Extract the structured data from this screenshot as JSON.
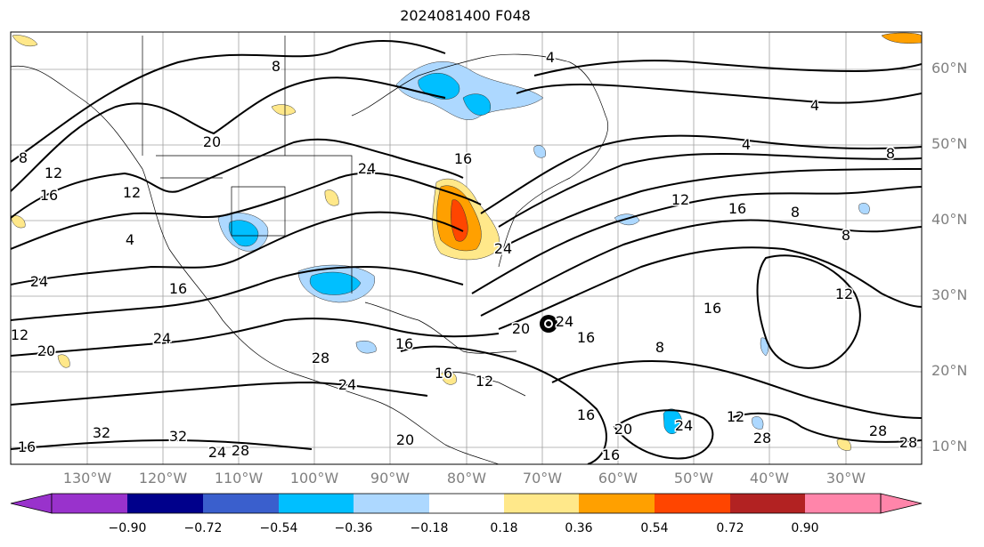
{
  "title": "2024081400 F048",
  "lat_labels": [
    "60°N",
    "50°N",
    "40°N",
    "30°N",
    "20°N",
    "10°N"
  ],
  "lon_labels": [
    "130°W",
    "120°W",
    "110°W",
    "100°W",
    "90°W",
    "80°W",
    "70°W",
    "60°W",
    "50°W",
    "40°W",
    "30°W"
  ],
  "contour_labels": [
    "8",
    "4",
    "4",
    "4",
    "8",
    "20",
    "8",
    "12",
    "16",
    "12",
    "24",
    "12",
    "16",
    "8",
    "8",
    "4",
    "24",
    "16",
    "16",
    "16",
    "12",
    "12",
    "20",
    "16",
    "24",
    "20",
    "16",
    "8",
    "16",
    "12",
    "12",
    "16",
    "24",
    "32",
    "32",
    "28",
    "24",
    "28",
    "20",
    "16",
    "28",
    "24",
    "24",
    "20",
    "16",
    "28",
    "28",
    "24"
  ],
  "colorbar": {
    "ticks": [
      "−0.90",
      "−0.72",
      "−0.54",
      "−0.36",
      "−0.18",
      "0.18",
      "0.36",
      "0.54",
      "0.72",
      "0.90"
    ],
    "colors": [
      "#9932cc",
      "#00008b",
      "#3a5fcd",
      "#00bfff",
      "#add8ff",
      "#ffffff",
      "#ffe88a",
      "#ffa000",
      "#ff4500",
      "#b22222",
      "#ff85aa"
    ]
  },
  "symbols": [
    "hurricane-symbol"
  ]
}
